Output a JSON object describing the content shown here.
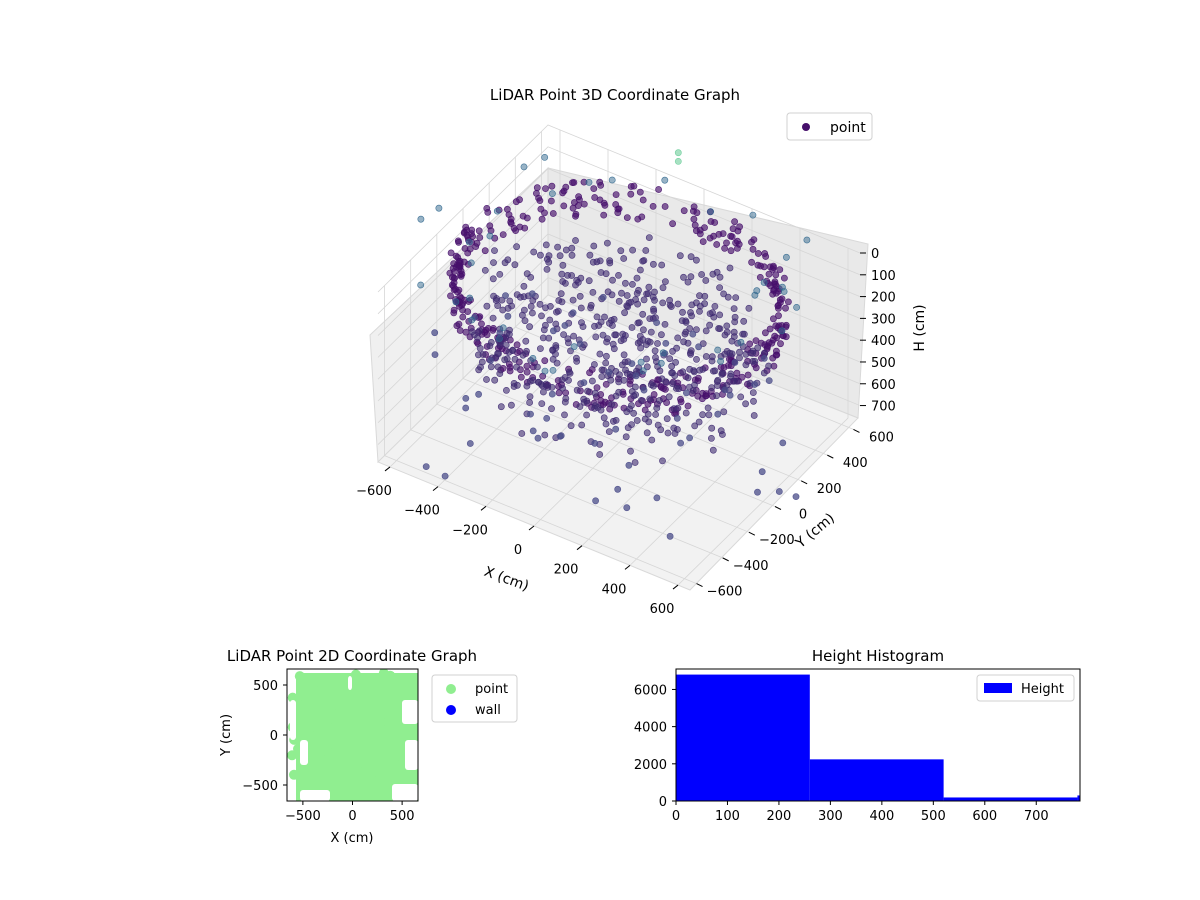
{
  "chart_data": [
    {
      "type": "scatter",
      "projection": "3d",
      "title": "LiDAR Point 3D Coordinate Graph",
      "xlabel": "X (cm)",
      "ylabel": "Y (cm)",
      "zlabel": "H (cm)",
      "xlim": [
        -650,
        650
      ],
      "ylim": [
        -650,
        650
      ],
      "zlim": [
        0,
        780
      ],
      "z_inverted": true,
      "xticks": [
        "−600",
        "−400",
        "−200",
        "0",
        "200",
        "400",
        "600"
      ],
      "yticks": [
        "−600",
        "−400",
        "−200",
        "0",
        "200",
        "400",
        "600"
      ],
      "zticks": [
        "0",
        "100",
        "200",
        "300",
        "400",
        "500",
        "600",
        "700"
      ],
      "grid": true,
      "legend": {
        "position": "top-right",
        "entries": [
          "point"
        ]
      },
      "colormap": "viridis",
      "series": [
        {
          "name": "point",
          "color": "#46106b",
          "description_of_distribution": "ring of points along the walls plus scattered interior points",
          "ring_radius_approx": 600,
          "ring_height_approx": 100
        }
      ]
    },
    {
      "type": "scatter",
      "title": "LiDAR Point 2D Coordinate Graph",
      "xlabel": "X (cm)",
      "ylabel": "Y (cm)",
      "xlim": [
        -660,
        660
      ],
      "ylim": [
        -660,
        660
      ],
      "xticks": [
        "−500",
        "0",
        "500"
      ],
      "yticks": [
        "500",
        "0",
        "−500"
      ],
      "legend": {
        "position": "right",
        "entries": [
          "point",
          "wall"
        ]
      },
      "series": [
        {
          "name": "point",
          "color": "#90ee90"
        },
        {
          "name": "wall",
          "color": "#0000ff"
        }
      ]
    },
    {
      "type": "bar",
      "subtype": "histogram",
      "title": "Height Histogram",
      "xlabel": "",
      "ylabel": "",
      "xlim": [
        0,
        785
      ],
      "ylim": [
        0,
        7100
      ],
      "xticks": [
        "0",
        "100",
        "200",
        "300",
        "400",
        "500",
        "600",
        "700"
      ],
      "yticks": [
        "0",
        "2000",
        "4000",
        "6000"
      ],
      "legend": {
        "position": "top-right",
        "entries": [
          "Height"
        ]
      },
      "series": [
        {
          "name": "Height",
          "color": "#0000ff",
          "bins": [
            0,
            260,
            520,
            780,
            785
          ],
          "values": [
            6800,
            2240,
            190,
            300
          ]
        }
      ]
    }
  ]
}
